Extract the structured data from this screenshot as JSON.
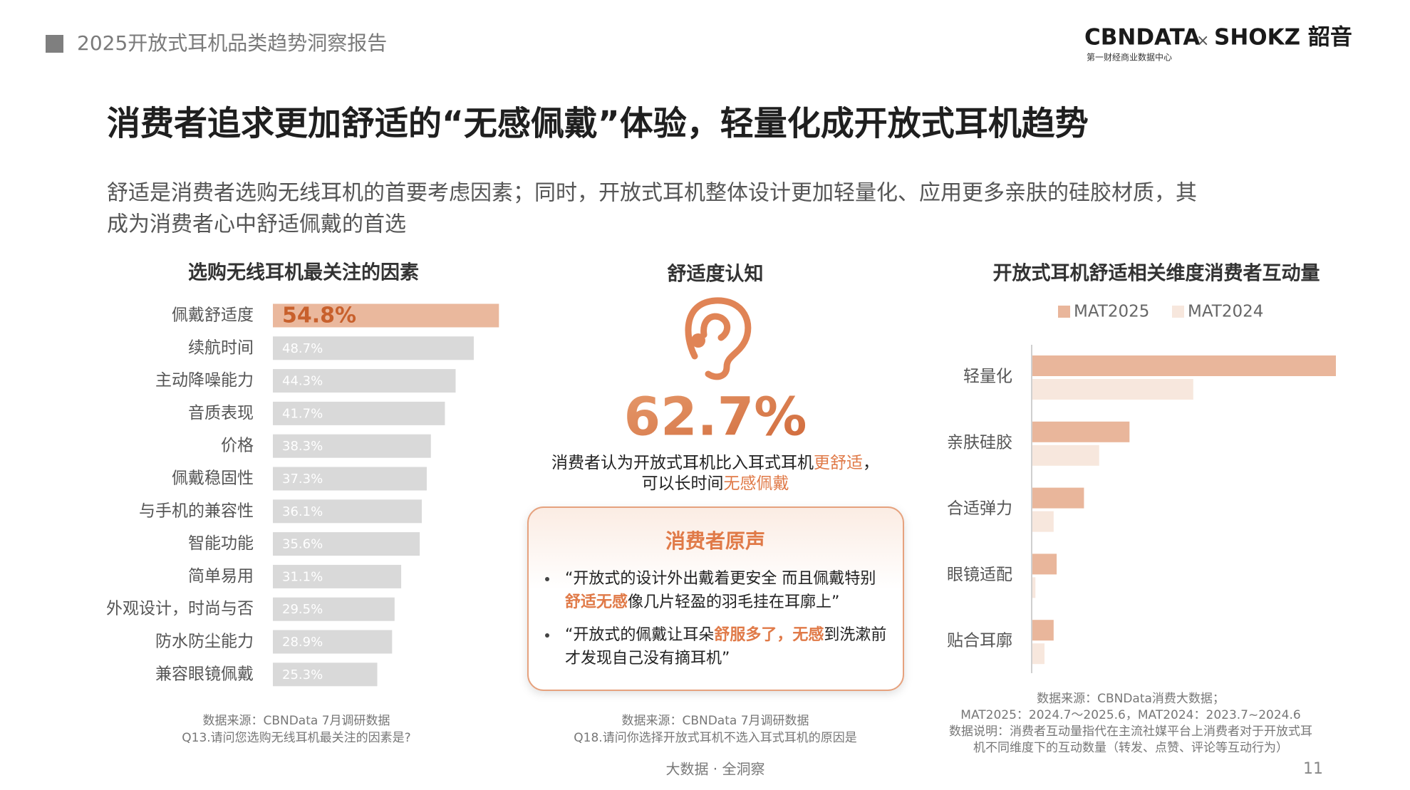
{
  "header": {
    "report_title": "2025开放式耳机品类趋势洞察报告",
    "logo_left": "CBNDATA",
    "logo_times": "×",
    "logo_right": "SHOKZ 韶音",
    "logo_sub": "第一财经商业数据中心"
  },
  "title": "消费者追求更加舒适的“无感佩戴”体验，轻量化成开放式耳机趋势",
  "subtitle": [
    "舒适是消费者选购无线耳机的首要考虑因素；同时，开放式耳机整体设计更加轻量化、应用更多亲肤的硅胶材质，其",
    "成为消费者心中舒适佩戴的首选"
  ],
  "chart_data": [
    {
      "type": "bar",
      "orientation": "horizontal",
      "title": "选购无线耳机最关注的因素",
      "categories": [
        "佩戴舒适度",
        "续航时间",
        "主动降噪能力",
        "音质表现",
        "价格",
        "佩戴稳固性",
        "与手机的兼容性",
        "智能功能",
        "简单易用",
        "外观设计，时尚与否",
        "防水防尘能力",
        "兼容眼镜佩戴"
      ],
      "values": [
        54.8,
        48.7,
        44.3,
        41.7,
        38.3,
        37.3,
        36.1,
        35.6,
        31.1,
        29.5,
        28.9,
        25.3
      ],
      "value_labels": [
        "54.8%",
        "48.7%",
        "44.3%",
        "41.7%",
        "38.3%",
        "37.3%",
        "36.1%",
        "35.6%",
        "31.1%",
        "29.5%",
        "28.9%",
        "25.3%"
      ],
      "colors": [
        "#eab89d",
        "#d9d9d9",
        "#d9d9d9",
        "#d9d9d9",
        "#d9d9d9",
        "#d9d9d9",
        "#d9d9d9",
        "#d9d9d9",
        "#d9d9d9",
        "#d9d9d9",
        "#d9d9d9",
        "#d9d9d9"
      ],
      "notes": [
        "数据来源：CBNData 7月调研数据",
        "Q13.请问您选购无线耳机最关注的因素是?"
      ]
    },
    {
      "type": "grouped-bar",
      "orientation": "horizontal",
      "title": "开放式耳机舒适相关维度消费者互动量",
      "categories": [
        "轻量化",
        "亲肤硅胶",
        "合适弹力",
        "眼镜适配",
        "贴合耳廓"
      ],
      "series": [
        {
          "name": "MAT2025",
          "color": "#e9b69b",
          "values": [
            100,
            32,
            17,
            8,
            7
          ]
        },
        {
          "name": "MAT2024",
          "color": "#f7e7dd",
          "values": [
            53,
            22,
            7,
            1,
            4
          ]
        }
      ],
      "legend": "top",
      "notes": [
        "数据来源：CBNData消费大数据；",
        "MAT2025：2024.7～2025.6，MAT2024：2023.7~2024.6",
        "数据说明：消费者互动量指代在主流社媒平台上消费者对于开放式耳",
        "机不同维度下的互动数量（转发、点赞、评论等互动行为）"
      ]
    }
  ],
  "comfort_panel": {
    "title": "舒适度认知",
    "stat": "62.7%",
    "statement": [
      [
        {
          "text": "消费者认为开放式耳机比入耳式耳机",
          "highlight": false
        },
        {
          "text": "更舒适",
          "highlight": true
        },
        {
          "text": "，",
          "highlight": false
        }
      ],
      [
        {
          "text": "可以长时间",
          "highlight": false
        },
        {
          "text": "无感佩戴",
          "highlight": true
        }
      ]
    ],
    "voices_title": "消费者原声",
    "quotes": [
      [
        [
          {
            "text": "“开放式的设计外出戴着更安全 而且佩戴特别",
            "highlight": false
          }
        ],
        [
          {
            "text": "舒适无感",
            "highlight": true
          },
          {
            "text": "像几片轻盈的羽毛挂在耳廓上”",
            "highlight": false
          }
        ]
      ],
      [
        [
          {
            "text": "“开放式的佩戴让耳朵",
            "highlight": false
          },
          {
            "text": "舒服多了，无感",
            "highlight": true
          },
          {
            "text": "到洗漱前",
            "highlight": false
          }
        ],
        [
          {
            "text": "才发现自己没有摘耳机”",
            "highlight": false
          }
        ]
      ]
    ],
    "notes": [
      "数据来源：CBNData 7月调研数据",
      "Q18.请问你选择开放式耳机不选入耳式耳机的原因是"
    ]
  },
  "footer": {
    "slogan": "大数据 · 全洞察",
    "page_number": 11
  }
}
